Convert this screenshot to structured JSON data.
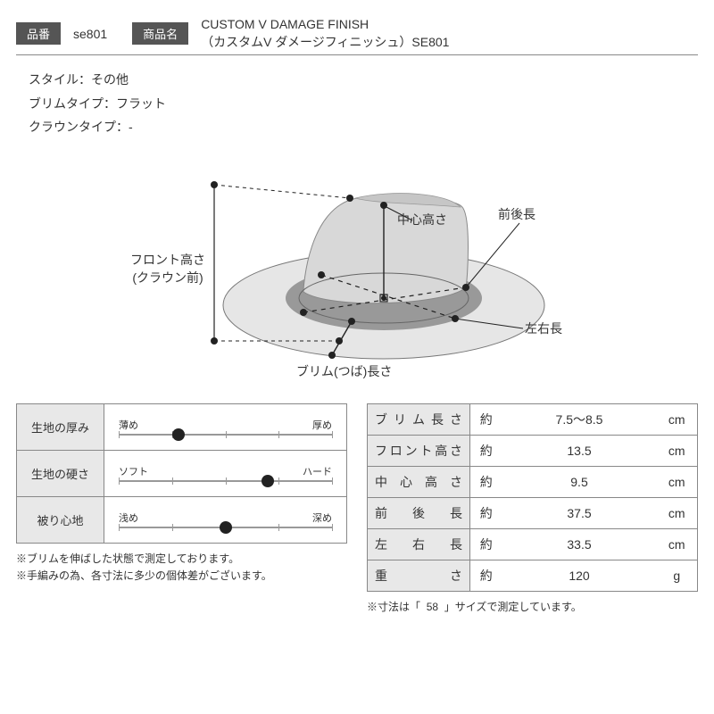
{
  "header": {
    "item_no_label": "品番",
    "item_no": "se801",
    "name_label": "商品名",
    "name_line1": "CUSTOM V DAMAGE FINISH",
    "name_line2": "（カスタムV ダメージフィニッシュ）SE801"
  },
  "info": {
    "style": "スタイル：その他",
    "brim": "ブリムタイプ：フラット",
    "crown": "クラウンタイプ：-"
  },
  "diagram": {
    "labels": {
      "center_height": "中心高さ",
      "front_back": "前後長",
      "front_height_l1": "フロント高さ",
      "front_height_l2": "(クラウン前)",
      "left_right": "左右長",
      "brim_length": "ブリム(つば)長さ"
    },
    "colors": {
      "hat_light": "#d8d8d8",
      "hat_dark": "#a8a8a8",
      "brim_outer": "#e6e6e6",
      "brim_inner": "#999",
      "line": "#222"
    }
  },
  "gauges": [
    {
      "label": "生地の厚み",
      "left": "薄め",
      "right": "厚め",
      "value": 0.28
    },
    {
      "label": "生地の硬さ",
      "left": "ソフト",
      "right": "ハード",
      "value": 0.7
    },
    {
      "label": "被り心地",
      "left": "浅め",
      "right": "深め",
      "value": 0.5
    }
  ],
  "gauge_note_1": "※ブリムを伸ばした状態で測定しております。",
  "gauge_note_2": "※手編みの為、各寸法に多少の個体差がございます。",
  "dims": {
    "approx": "約",
    "rows": [
      {
        "label": "ブリム長さ",
        "value": "7.5〜8.5",
        "unit": "cm"
      },
      {
        "label": "フロント高さ",
        "value": "13.5",
        "unit": "cm"
      },
      {
        "label": "中心高さ",
        "value": "9.5",
        "unit": "cm"
      },
      {
        "label": "前後長",
        "value": "37.5",
        "unit": "cm"
      },
      {
        "label": "左右長",
        "value": "33.5",
        "unit": "cm"
      },
      {
        "label": "重さ",
        "value": "120",
        "unit": "g"
      }
    ],
    "note_prefix": "※寸法は「",
    "note_size": "58",
    "note_suffix": "」サイズで測定しています。"
  }
}
